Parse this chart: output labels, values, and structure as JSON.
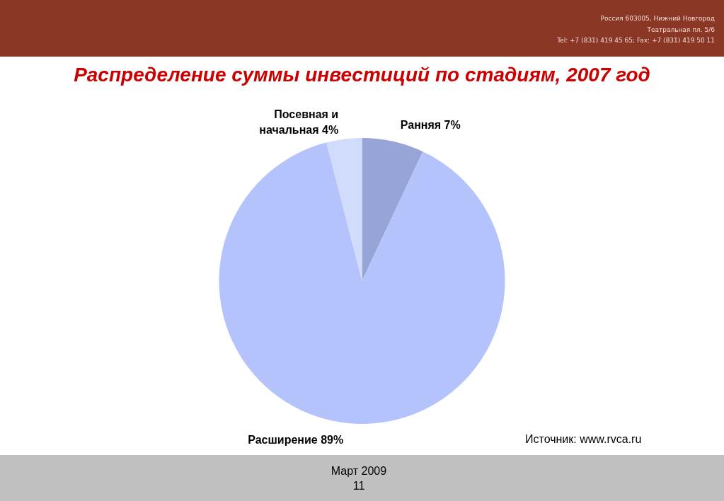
{
  "chart_data": {
    "type": "pie",
    "title": "Распределение суммы инвестиций по стадиям, 2007 год",
    "categories": [
      "Ранняя",
      "Расширение",
      "Посевная и начальная"
    ],
    "values": [
      7,
      89,
      4
    ],
    "value_labels": [
      "7%",
      "89%",
      "4%"
    ],
    "colors": [
      "#97a5d6",
      "#b5c3fc",
      "#d1dbfc"
    ],
    "annotations": [
      "Россия 603005, Нижний Новгород",
      "Театральная пл. 5/6",
      "Tel: +7 (831) 419 45 65; Fax: +7 (831) 419 50 11",
      "Источник: www.rvca.ru",
      "Март 2009",
      "11"
    ]
  }
}
